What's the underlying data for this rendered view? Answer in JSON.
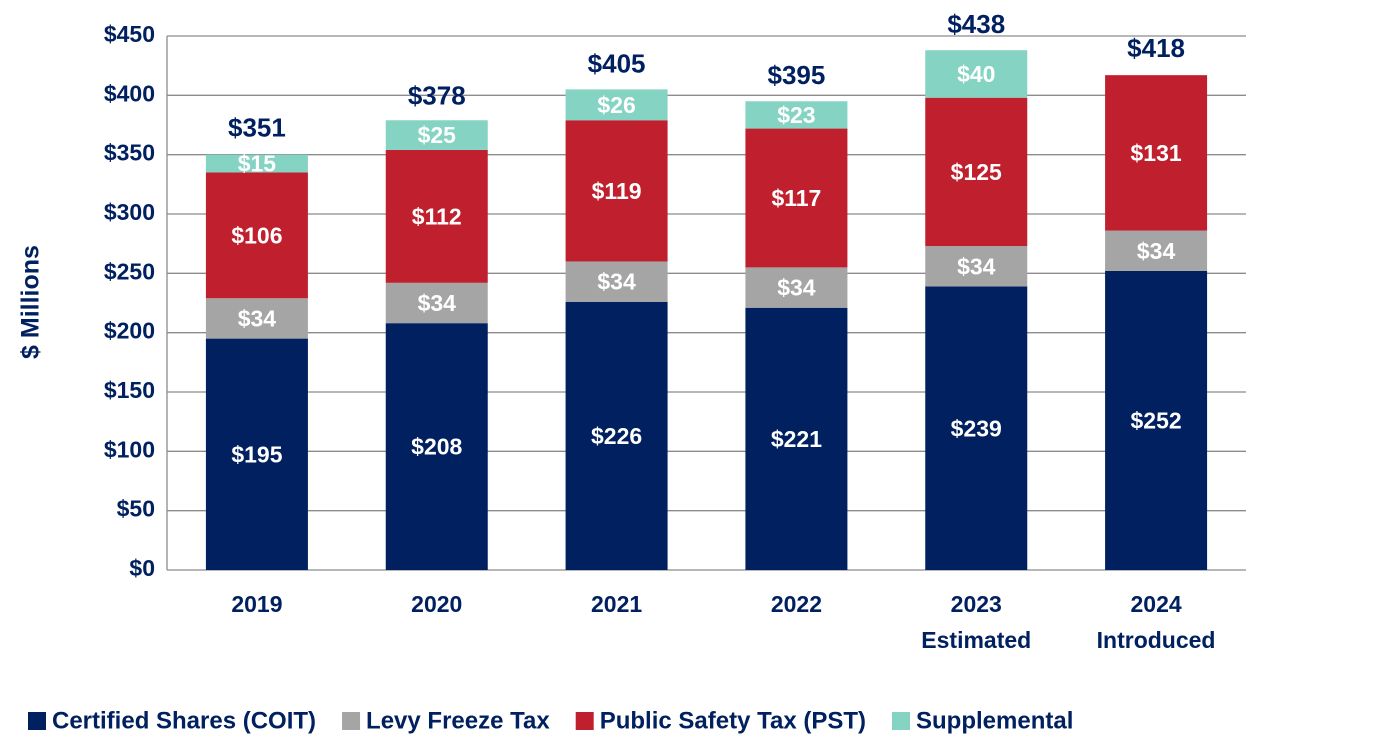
{
  "chart_data": {
    "type": "stacked_bar",
    "y_label": "$ Millions",
    "categories": [
      "2019",
      "2020",
      "2021",
      "2022",
      "2023\nEstimated",
      "2024\nIntroduced"
    ],
    "series": [
      {
        "name": "Certified Shares (COIT)",
        "color": "#002060",
        "values": [
          195,
          208,
          226,
          221,
          239,
          252
        ],
        "value_labels": [
          "$195",
          "$208",
          "$226",
          "$221",
          "$239",
          "$252"
        ]
      },
      {
        "name": "Levy Freeze Tax",
        "color": "#a5a5a5",
        "values": [
          34,
          34,
          34,
          34,
          34,
          34
        ],
        "value_labels": [
          "$34",
          "$34",
          "$34",
          "$34",
          "$34",
          "$34"
        ]
      },
      {
        "name": "Public Safety Tax (PST)",
        "color": "#c0202e",
        "values": [
          106,
          112,
          119,
          117,
          125,
          131
        ],
        "value_labels": [
          "$106",
          "$112",
          "$119",
          "$117",
          "$125",
          "$131"
        ]
      },
      {
        "name": "Supplemental",
        "color": "#85d3c2",
        "values": [
          15,
          25,
          26,
          23,
          40,
          null
        ],
        "value_labels": [
          "$15",
          "$25",
          "$26",
          "$23",
          "$40",
          null
        ]
      }
    ],
    "totals": [
      351,
      378,
      405,
      395,
      438,
      418
    ],
    "total_labels": [
      "$351",
      "$378",
      "$405",
      "$395",
      "$438",
      "$418"
    ],
    "ylim": [
      0,
      450
    ],
    "yticks": [
      {
        "value": 0,
        "label": "$0"
      },
      {
        "value": 50,
        "label": "$50"
      },
      {
        "value": 100,
        "label": "$100"
      },
      {
        "value": 150,
        "label": "$150"
      },
      {
        "value": 200,
        "label": "$200"
      },
      {
        "value": 250,
        "label": "$250"
      },
      {
        "value": 300,
        "label": "$300"
      },
      {
        "value": 350,
        "label": "$350"
      },
      {
        "value": 400,
        "label": "$400"
      },
      {
        "value": 450,
        "label": "$450"
      }
    ],
    "grid": true,
    "legend": "bottom"
  }
}
